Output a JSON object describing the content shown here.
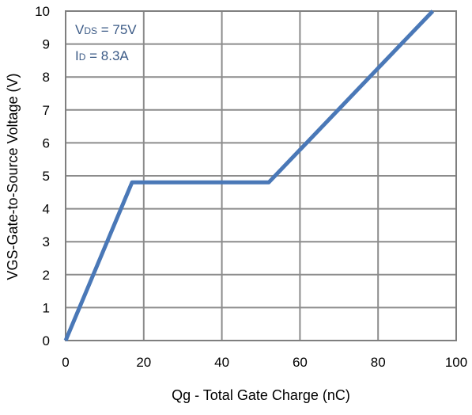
{
  "chart_data": {
    "type": "line",
    "title": "",
    "xlabel": "Qg - Total Gate Charge (nC)",
    "ylabel": "VGS-Gate-to-Source Voltage (V)",
    "xlim": [
      0,
      100
    ],
    "ylim": [
      0,
      10
    ],
    "x_ticks": [
      "0",
      "20",
      "40",
      "60",
      "80",
      "100"
    ],
    "y_ticks": [
      "0",
      "1",
      "2",
      "3",
      "4",
      "5",
      "6",
      "7",
      "8",
      "9",
      "10"
    ],
    "grid": true,
    "annotations": {
      "vds": {
        "main": "V",
        "sub": "DS",
        "rest": " = 75V"
      },
      "id": {
        "main": "I",
        "sub": "D",
        "rest": " = 8.3A"
      }
    },
    "series": [
      {
        "x": [
          0,
          17,
          52,
          94
        ],
        "y": [
          0,
          4.8,
          4.8,
          10
        ],
        "color": "#4a78b7"
      }
    ],
    "colors": {
      "line": "#4a78b7",
      "grid": "#8c8c8c",
      "frame": "#7f7f7f",
      "annotation": "#3b5a86"
    }
  }
}
